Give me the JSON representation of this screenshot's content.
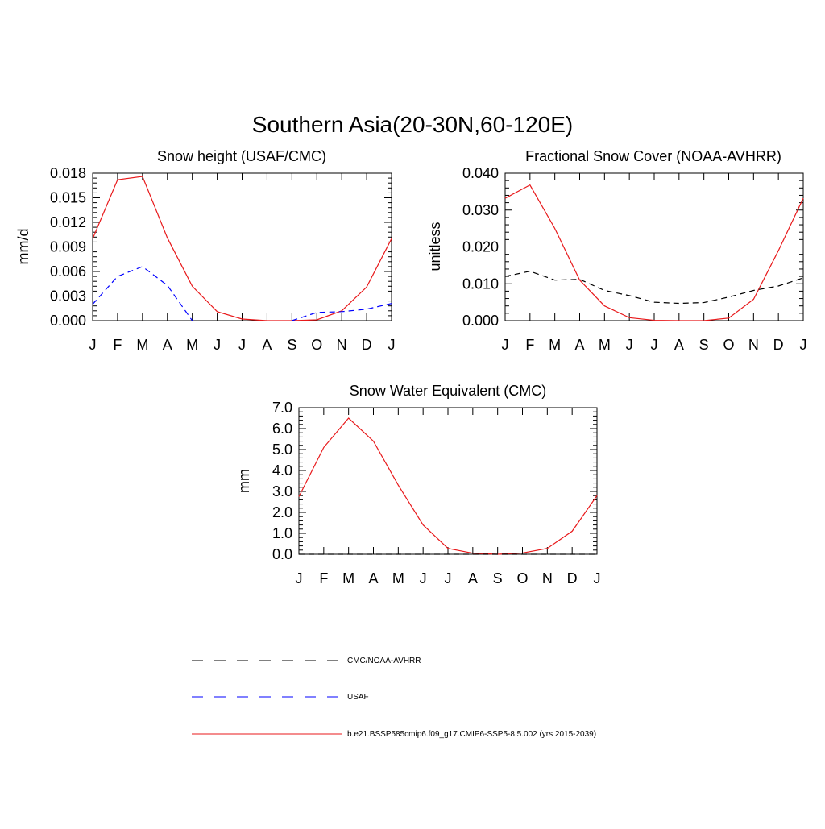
{
  "title": "Southern Asia(20-30N,60-120E)",
  "colors": {
    "model": "#e8191b",
    "usaf": "#0000ff",
    "obs": "#000000",
    "frame": "#000000"
  },
  "chart_data": [
    {
      "type": "line",
      "title": "Snow height (USAF/CMC)",
      "ylabel": "mm/d",
      "ylim": [
        0,
        0.018
      ],
      "yticks": [
        "0.000",
        "0.003",
        "0.006",
        "0.009",
        "0.012",
        "0.015",
        "0.018"
      ],
      "categories": [
        "J",
        "F",
        "M",
        "A",
        "M",
        "J",
        "J",
        "A",
        "S",
        "O",
        "N",
        "D",
        "J"
      ],
      "series": [
        {
          "name": "b.e21.BSSP585cmip6.f09_g17.CMIP6-SSP5-8.5.002 (yrs 2015-2039)",
          "color": "#e8191b",
          "dash": "solid",
          "values": [
            0.01,
            0.0172,
            0.0176,
            0.0101,
            0.0042,
            0.0011,
            0.0002,
            0.0,
            0.0,
            0.0001,
            0.0012,
            0.0041,
            0.01
          ]
        },
        {
          "name": "USAF",
          "color": "#0000ff",
          "dash": "dashed",
          "values": [
            0.002,
            0.0054,
            0.0066,
            0.0043,
            0.0,
            null,
            null,
            null,
            0.0,
            0.001,
            0.0011,
            0.0014,
            0.0021
          ]
        }
      ]
    },
    {
      "type": "line",
      "title": "Fractional Snow Cover (NOAA-AVHRR)",
      "ylabel": "unitless",
      "ylim": [
        0,
        0.04
      ],
      "yticks": [
        "0.000",
        "0.010",
        "0.020",
        "0.030",
        "0.040"
      ],
      "categories": [
        "J",
        "F",
        "M",
        "A",
        "M",
        "J",
        "J",
        "A",
        "S",
        "O",
        "N",
        "D",
        "J"
      ],
      "series": [
        {
          "name": "b.e21.BSSP585cmip6.f09_g17.CMIP6-SSP5-8.5.002 (yrs 2015-2039)",
          "color": "#e8191b",
          "dash": "solid",
          "values": [
            0.0332,
            0.0368,
            0.025,
            0.011,
            0.004,
            0.0008,
            0.0001,
            0.0,
            0.0,
            0.0007,
            0.0058,
            0.019,
            0.0332
          ]
        },
        {
          "name": "CMC/NOAA-AVHRR",
          "color": "#000000",
          "dash": "dashed",
          "values": [
            0.012,
            0.0134,
            0.011,
            0.0112,
            0.0082,
            0.0068,
            0.005,
            0.0047,
            0.0049,
            0.0064,
            0.0082,
            0.0094,
            0.0116
          ]
        }
      ]
    },
    {
      "type": "line",
      "title": "Snow Water Equivalent (CMC)",
      "ylabel": "mm",
      "ylim": [
        0,
        7.0
      ],
      "yticks": [
        "0.0",
        "1.0",
        "2.0",
        "3.0",
        "4.0",
        "5.0",
        "6.0",
        "7.0"
      ],
      "categories": [
        "J",
        "F",
        "M",
        "A",
        "M",
        "J",
        "J",
        "A",
        "S",
        "O",
        "N",
        "D",
        "J"
      ],
      "series": [
        {
          "name": "b.e21.BSSP585cmip6.f09_g17.CMIP6-SSP5-8.5.002 (yrs 2015-2039)",
          "color": "#e8191b",
          "dash": "solid",
          "values": [
            2.75,
            5.1,
            6.5,
            5.4,
            3.3,
            1.4,
            0.28,
            0.05,
            0.0,
            0.06,
            0.28,
            1.1,
            2.8
          ]
        },
        {
          "name": "CMC/NOAA-AVHRR",
          "color": "#000000",
          "dash": "dashed",
          "values": [
            0,
            0,
            0,
            0,
            0,
            0,
            0,
            0,
            0,
            0,
            0,
            0,
            0
          ]
        }
      ]
    }
  ],
  "legend": [
    {
      "label": "CMC/NOAA-AVHRR",
      "color": "#000000",
      "dash": "dashed"
    },
    {
      "label": "USAF",
      "color": "#0000ff",
      "dash": "dashed"
    },
    {
      "label": "b.e21.BSSP585cmip6.f09_g17.CMIP6-SSP5-8.5.002 (yrs 2015-2039)",
      "color": "#e8191b",
      "dash": "solid"
    }
  ]
}
